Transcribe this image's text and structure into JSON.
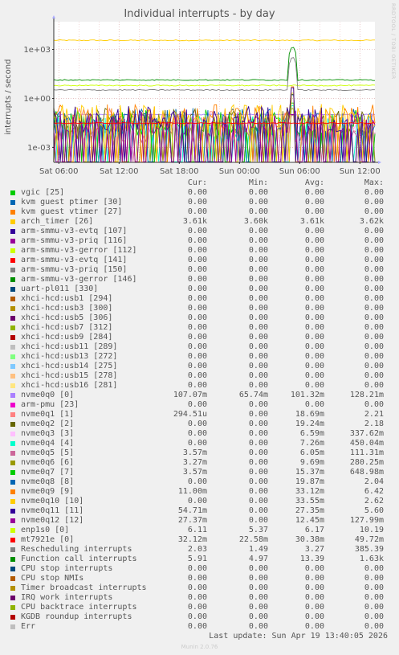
{
  "chart_data": {
    "type": "line",
    "title": "Individual interrupts - by day",
    "ylabel": "interrupts / second",
    "yscale": "log",
    "ylim": [
      0.00012,
      50000
    ],
    "yticks": [
      "1e+03",
      "1e+00",
      "1e-03"
    ],
    "yticks_values": [
      1000,
      1,
      0.001
    ],
    "xlim": [
      -0.5,
      31.5
    ],
    "xticks": [
      "Sat 06:00",
      "Sat 12:00",
      "Sat 18:00",
      "Sun 00:00",
      "Sun 06:00",
      "Sun 12:00"
    ],
    "xticks_hours": [
      0,
      6,
      12,
      18,
      24,
      30
    ],
    "grid": true,
    "columns": [
      "Cur:",
      "Min:",
      "Avg:",
      "Max:"
    ],
    "series": [
      {
        "name": "vgic [25]",
        "color": "#00cc00",
        "cur": "0.00",
        "min": "0.00",
        "avg": "0.00",
        "max": "0.00"
      },
      {
        "name": "kvm guest ptimer [30]",
        "color": "#0066b3",
        "cur": "0.00",
        "min": "0.00",
        "avg": "0.00",
        "max": "0.00"
      },
      {
        "name": "kvm guest vtimer [27]",
        "color": "#ff8000",
        "cur": "0.00",
        "min": "0.00",
        "avg": "0.00",
        "max": "0.00"
      },
      {
        "name": "arch_timer [26]",
        "color": "#ffcc00",
        "cur": "3.61k",
        "min": "3.60k",
        "avg": "3.61k",
        "max": "3.62k"
      },
      {
        "name": "arm-smmu-v3-evtq [107]",
        "color": "#330099",
        "cur": "0.00",
        "min": "0.00",
        "avg": "0.00",
        "max": "0.00"
      },
      {
        "name": "arm-smmu-v3-priq [116]",
        "color": "#990099",
        "cur": "0.00",
        "min": "0.00",
        "avg": "0.00",
        "max": "0.00"
      },
      {
        "name": "arm-smmu-v3-gerror [112]",
        "color": "#ccff00",
        "cur": "0.00",
        "min": "0.00",
        "avg": "0.00",
        "max": "0.00"
      },
      {
        "name": "arm-smmu-v3-evtq [141]",
        "color": "#ff0000",
        "cur": "0.00",
        "min": "0.00",
        "avg": "0.00",
        "max": "0.00"
      },
      {
        "name": "arm-smmu-v3-priq [150]",
        "color": "#808080",
        "cur": "0.00",
        "min": "0.00",
        "avg": "0.00",
        "max": "0.00"
      },
      {
        "name": "arm-smmu-v3-gerror [146]",
        "color": "#008f00",
        "cur": "0.00",
        "min": "0.00",
        "avg": "0.00",
        "max": "0.00"
      },
      {
        "name": "uart-pl011 [330]",
        "color": "#00487d",
        "cur": "0.00",
        "min": "0.00",
        "avg": "0.00",
        "max": "0.00"
      },
      {
        "name": "xhci-hcd:usb1 [294]",
        "color": "#b35a00",
        "cur": "0.00",
        "min": "0.00",
        "avg": "0.00",
        "max": "0.00"
      },
      {
        "name": "xhci-hcd:usb3 [300]",
        "color": "#b38f00",
        "cur": "0.00",
        "min": "0.00",
        "avg": "0.00",
        "max": "0.00"
      },
      {
        "name": "xhci-hcd:usb5 [306]",
        "color": "#6b006b",
        "cur": "0.00",
        "min": "0.00",
        "avg": "0.00",
        "max": "0.00"
      },
      {
        "name": "xhci-hcd:usb7 [312]",
        "color": "#8fb300",
        "cur": "0.00",
        "min": "0.00",
        "avg": "0.00",
        "max": "0.00"
      },
      {
        "name": "xhci-hcd:usb9 [284]",
        "color": "#b30000",
        "cur": "0.00",
        "min": "0.00",
        "avg": "0.00",
        "max": "0.00"
      },
      {
        "name": "xhci-hcd:usb11 [289]",
        "color": "#bebebe",
        "cur": "0.00",
        "min": "0.00",
        "avg": "0.00",
        "max": "0.00"
      },
      {
        "name": "xhci-hcd:usb13 [272]",
        "color": "#80ff80",
        "cur": "0.00",
        "min": "0.00",
        "avg": "0.00",
        "max": "0.00"
      },
      {
        "name": "xhci-hcd:usb14 [275]",
        "color": "#80c9ff",
        "cur": "0.00",
        "min": "0.00",
        "avg": "0.00",
        "max": "0.00"
      },
      {
        "name": "xhci-hcd:usb15 [278]",
        "color": "#ffc080",
        "cur": "0.00",
        "min": "0.00",
        "avg": "0.00",
        "max": "0.00"
      },
      {
        "name": "xhci-hcd:usb16 [281]",
        "color": "#ffe680",
        "cur": "0.00",
        "min": "0.00",
        "avg": "0.00",
        "max": "0.00"
      },
      {
        "name": "nvme0q0 [0]",
        "color": "#aa80ff",
        "cur": "107.07m",
        "min": "65.74m",
        "avg": "101.32m",
        "max": "128.21m"
      },
      {
        "name": "arm-pmu [23]",
        "color": "#ee00cc",
        "cur": "0.00",
        "min": "0.00",
        "avg": "0.00",
        "max": "0.00"
      },
      {
        "name": "nvme0q1 [1]",
        "color": "#ff8080",
        "cur": "294.51u",
        "min": "0.00",
        "avg": "18.69m",
        "max": "2.21"
      },
      {
        "name": "nvme0q2 [2]",
        "color": "#666600",
        "cur": "0.00",
        "min": "0.00",
        "avg": "19.24m",
        "max": "2.18"
      },
      {
        "name": "nvme0q3 [3]",
        "color": "#ffbfff",
        "cur": "0.00",
        "min": "0.00",
        "avg": "6.59m",
        "max": "337.62m"
      },
      {
        "name": "nvme0q4 [4]",
        "color": "#00ffcc",
        "cur": "0.00",
        "min": "0.00",
        "avg": "7.26m",
        "max": "450.04m"
      },
      {
        "name": "nvme0q5 [5]",
        "color": "#cc6699",
        "cur": "3.57m",
        "min": "0.00",
        "avg": "6.05m",
        "max": "111.31m"
      },
      {
        "name": "nvme0q6 [6]",
        "color": "#999900",
        "cur": "3.27m",
        "min": "0.00",
        "avg": "9.69m",
        "max": "280.25m"
      },
      {
        "name": "nvme0q7 [7]",
        "color": "#00cc00",
        "cur": "3.57m",
        "min": "0.00",
        "avg": "15.37m",
        "max": "648.98m"
      },
      {
        "name": "nvme0q8 [8]",
        "color": "#0066b3",
        "cur": "0.00",
        "min": "0.00",
        "avg": "19.87m",
        "max": "2.04"
      },
      {
        "name": "nvme0q9 [9]",
        "color": "#ff8000",
        "cur": "11.00m",
        "min": "0.00",
        "avg": "33.12m",
        "max": "6.42"
      },
      {
        "name": "nvme0q10 [10]",
        "color": "#ffcc00",
        "cur": "0.00",
        "min": "0.00",
        "avg": "33.55m",
        "max": "2.62"
      },
      {
        "name": "nvme0q11 [11]",
        "color": "#330099",
        "cur": "54.71m",
        "min": "0.00",
        "avg": "27.35m",
        "max": "5.60"
      },
      {
        "name": "nvme0q12 [12]",
        "color": "#990099",
        "cur": "27.37m",
        "min": "0.00",
        "avg": "12.45m",
        "max": "127.99m"
      },
      {
        "name": "enp1s0 [0]",
        "color": "#ccff00",
        "cur": "6.11",
        "min": "5.37",
        "avg": "6.17",
        "max": "10.19"
      },
      {
        "name": "mt7921e [0]",
        "color": "#ff0000",
        "cur": "32.12m",
        "min": "22.58m",
        "avg": "30.38m",
        "max": "49.72m"
      },
      {
        "name": "Rescheduling interrupts",
        "color": "#808080",
        "cur": "2.03",
        "min": "1.49",
        "avg": "3.27",
        "max": "385.39"
      },
      {
        "name": "Function call interrupts",
        "color": "#008f00",
        "cur": "5.91",
        "min": "4.97",
        "avg": "13.39",
        "max": "1.63k"
      },
      {
        "name": "CPU stop interrupts",
        "color": "#00487d",
        "cur": "0.00",
        "min": "0.00",
        "avg": "0.00",
        "max": "0.00"
      },
      {
        "name": "CPU stop NMIs",
        "color": "#b35a00",
        "cur": "0.00",
        "min": "0.00",
        "avg": "0.00",
        "max": "0.00"
      },
      {
        "name": "Timer broadcast interrupts",
        "color": "#b38f00",
        "cur": "0.00",
        "min": "0.00",
        "avg": "0.00",
        "max": "0.00"
      },
      {
        "name": "IRQ work interrupts",
        "color": "#6b006b",
        "cur": "0.00",
        "min": "0.00",
        "avg": "0.00",
        "max": "0.00"
      },
      {
        "name": "CPU backtrace interrupts",
        "color": "#8fb300",
        "cur": "0.00",
        "min": "0.00",
        "avg": "0.00",
        "max": "0.00"
      },
      {
        "name": "KGDB roundup interrupts",
        "color": "#b30000",
        "cur": "0.00",
        "min": "0.00",
        "avg": "0.00",
        "max": "0.00"
      },
      {
        "name": "Err",
        "color": "#bebebe",
        "cur": "0.00",
        "min": "0.00",
        "avg": "0.00",
        "max": "0.00"
      }
    ]
  },
  "watermark": "RRDTOOL / TOBI OETIKER",
  "last_update": "Last update:  Sun Apr 19 13:40:05 2026",
  "footer": "Munin 2.0.76"
}
